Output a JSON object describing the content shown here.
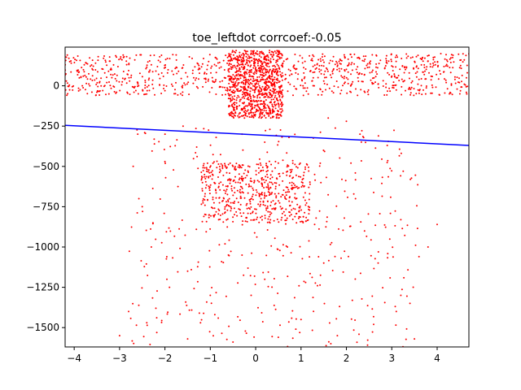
{
  "chart_data": {
    "type": "scatter",
    "title": "toe_leftdot corrcoef:-0.05",
    "xlabel": "",
    "ylabel": "",
    "xlim": [
      -4.2,
      4.7
    ],
    "ylim": [
      -1620,
      240
    ],
    "x_ticks": [
      -4,
      -3,
      -2,
      -1,
      0,
      1,
      2,
      3,
      4
    ],
    "x_tick_labels": [
      "−4",
      "−3",
      "−2",
      "−1",
      "0",
      "1",
      "2",
      "3",
      "4"
    ],
    "y_ticks": [
      0,
      -250,
      -500,
      -750,
      -1000,
      -1250,
      -1500
    ],
    "y_tick_labels": [
      "0",
      "−250",
      "−500",
      "−750",
      "−1000",
      "−1250",
      "−1500"
    ],
    "grid": false,
    "legend": "none",
    "series": [
      {
        "kind": "scatter",
        "color": "#ff0000",
        "marker": "dot",
        "clusters": [
          {
            "x": [
              -4.2,
              4.7
            ],
            "y": [
              -60,
              200
            ],
            "density": "very high"
          },
          {
            "x": [
              -0.6,
              0.6
            ],
            "y": [
              -200,
              220
            ],
            "density": "very high"
          },
          {
            "x": [
              -1.2,
              1.2
            ],
            "y": [
              -850,
              -480
            ],
            "density": "high"
          },
          {
            "x": [
              -2.8,
              3.6
            ],
            "y": [
              -1620,
              -250
            ],
            "density": "medium"
          }
        ],
        "points": [
          [
            -4.1,
            150
          ],
          [
            -3.8,
            60
          ],
          [
            -3.5,
            -40
          ],
          [
            -3.2,
            100
          ],
          [
            -2.9,
            180
          ],
          [
            -2.6,
            20
          ],
          [
            -2.3,
            130
          ],
          [
            -2.0,
            -30
          ],
          [
            -1.7,
            90
          ],
          [
            -1.4,
            170
          ],
          [
            -1.1,
            40
          ],
          [
            -0.8,
            110
          ],
          [
            -0.5,
            -80
          ],
          [
            -0.2,
            160
          ],
          [
            0.0,
            200
          ],
          [
            0.1,
            -150
          ],
          [
            0.3,
            60
          ],
          [
            0.6,
            140
          ],
          [
            0.9,
            -20
          ],
          [
            1.2,
            90
          ],
          [
            1.5,
            30
          ],
          [
            1.8,
            120
          ],
          [
            2.1,
            -40
          ],
          [
            2.4,
            70
          ],
          [
            2.7,
            10
          ],
          [
            3.0,
            60
          ],
          [
            3.3,
            -30
          ],
          [
            3.6,
            40
          ],
          [
            3.9,
            -10
          ],
          [
            4.2,
            20
          ],
          [
            4.5,
            -50
          ],
          [
            4.6,
            10
          ],
          [
            -0.3,
            -300
          ],
          [
            0.2,
            -350
          ],
          [
            -0.5,
            -500
          ],
          [
            0.5,
            -480
          ],
          [
            -1.0,
            -560
          ],
          [
            0.8,
            -600
          ],
          [
            -0.7,
            -700
          ],
          [
            0.4,
            -760
          ],
          [
            -0.2,
            -820
          ],
          [
            1.1,
            -740
          ],
          [
            -1.1,
            -800
          ],
          [
            0.9,
            -850
          ],
          [
            1.3,
            -860
          ],
          [
            -0.4,
            -650
          ],
          [
            -2.6,
            -300
          ],
          [
            -2.7,
            -500
          ],
          [
            -2.5,
            -750
          ],
          [
            -2.3,
            -1000
          ],
          [
            -1.9,
            -1250
          ],
          [
            -1.5,
            -1150
          ],
          [
            -1.0,
            -1300
          ],
          [
            -0.6,
            -1050
          ],
          [
            0.2,
            -1200
          ],
          [
            1.1,
            -1220
          ],
          [
            1.5,
            -1100
          ],
          [
            2.2,
            -700
          ],
          [
            2.4,
            -900
          ],
          [
            2.7,
            -1100
          ],
          [
            3.2,
            -1300
          ],
          [
            3.4,
            -1350
          ],
          [
            3.1,
            -1400
          ],
          [
            2.6,
            -1480
          ],
          [
            1.8,
            -1550
          ],
          [
            0.5,
            -1560
          ],
          [
            -0.5,
            -1590
          ],
          [
            -1.5,
            -1570
          ],
          [
            -2.4,
            -1470
          ],
          [
            -2.8,
            -1400
          ],
          [
            -3.0,
            -1550
          ],
          [
            -2.2,
            -1380
          ],
          [
            4.0,
            -860
          ],
          [
            3.8,
            -1000
          ],
          [
            3.6,
            -1060
          ],
          [
            3.5,
            -1570
          ],
          [
            2.9,
            -370
          ],
          [
            2.3,
            -300
          ],
          [
            2.0,
            -220
          ],
          [
            1.6,
            -200
          ],
          [
            -1.6,
            -250
          ],
          [
            -1.3,
            -380
          ],
          [
            -2.0,
            -470
          ],
          [
            1.3,
            -550
          ],
          [
            1.9,
            -580
          ],
          [
            2.1,
            -480
          ],
          [
            -0.1,
            -1300
          ],
          [
            0.7,
            -1000
          ],
          [
            -0.9,
            -1420
          ],
          [
            1.0,
            -1450
          ]
        ]
      },
      {
        "kind": "line",
        "color": "#0000ff",
        "x": [
          -4.2,
          4.7
        ],
        "y": [
          -245,
          -370
        ]
      }
    ]
  }
}
